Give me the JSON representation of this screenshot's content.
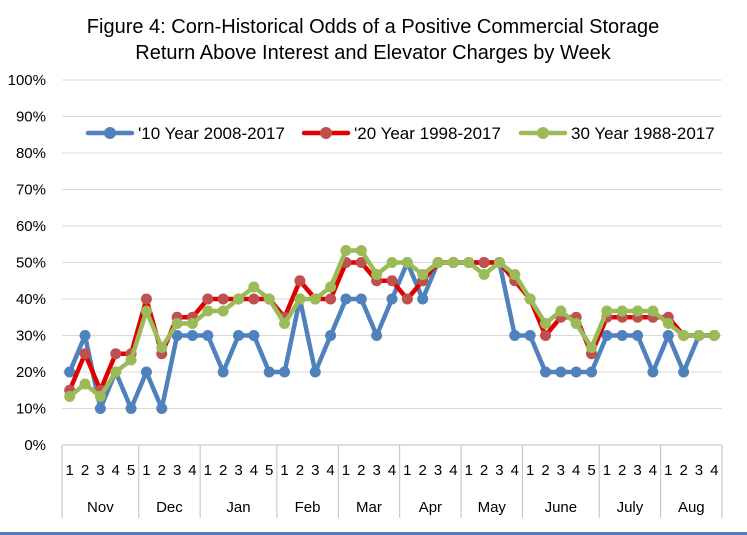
{
  "chart_data": {
    "type": "line",
    "title_lines": [
      "Figure 4: Corn-Historical Odds of a Positive Commercial Storage",
      "Return Above Interest and Elevator Charges by Week"
    ],
    "xlabel": "",
    "ylabel": "",
    "ylim": [
      0,
      100
    ],
    "y_ticks": [
      0,
      10,
      20,
      30,
      40,
      50,
      60,
      70,
      80,
      90,
      100
    ],
    "y_tick_labels": [
      "0%",
      "10%",
      "20%",
      "30%",
      "40%",
      "50%",
      "60%",
      "70%",
      "80%",
      "90%",
      "100%"
    ],
    "months": [
      {
        "label": "Nov",
        "weeks": [
          "1",
          "2",
          "3",
          "4",
          "5"
        ]
      },
      {
        "label": "Dec",
        "weeks": [
          "1",
          "2",
          "3",
          "4"
        ]
      },
      {
        "label": "Jan",
        "weeks": [
          "1",
          "2",
          "3",
          "4",
          "5"
        ]
      },
      {
        "label": "Feb",
        "weeks": [
          "1",
          "2",
          "3",
          "4"
        ]
      },
      {
        "label": "Mar",
        "weeks": [
          "1",
          "2",
          "3",
          "4"
        ]
      },
      {
        "label": "Apr",
        "weeks": [
          "1",
          "2",
          "3",
          "4"
        ]
      },
      {
        "label": "May",
        "weeks": [
          "1",
          "2",
          "3",
          "4"
        ]
      },
      {
        "label": "June",
        "weeks": [
          "1",
          "2",
          "3",
          "4",
          "5"
        ]
      },
      {
        "label": "July",
        "weeks": [
          "1",
          "2",
          "3",
          "4"
        ]
      },
      {
        "label": "Aug",
        "weeks": [
          "1",
          "2",
          "3",
          "4"
        ]
      }
    ],
    "series": [
      {
        "name": "'10 Year 2008-2017",
        "color": "#4f81bd",
        "values": [
          20,
          30,
          10,
          20,
          10,
          20,
          10,
          30,
          30,
          30,
          20,
          30,
          30,
          20,
          20,
          40,
          20,
          30,
          40,
          40,
          30,
          40,
          50,
          40,
          50,
          50,
          50,
          50,
          50,
          30,
          30,
          20,
          20,
          20,
          20,
          30,
          30,
          30,
          20,
          30,
          20,
          30,
          30
        ]
      },
      {
        "name": "'20 Year 1998-2017",
        "color": "#e00000",
        "marker_color": "#c0504d",
        "values": [
          15,
          25,
          15,
          25,
          25,
          40,
          25,
          35,
          35,
          40,
          40,
          40,
          40,
          40,
          35,
          45,
          40,
          40,
          50,
          50,
          45,
          45,
          40,
          45,
          50,
          50,
          50,
          50,
          50,
          45,
          40,
          30,
          35,
          35,
          25,
          35,
          35,
          35,
          35,
          35,
          30,
          30,
          30
        ]
      },
      {
        "name": "30 Year 1988-2017",
        "color": "#9bbb59",
        "values": [
          13.3,
          16.7,
          13.3,
          20,
          23.3,
          36.7,
          26.7,
          33.3,
          33.3,
          36.7,
          36.7,
          40,
          43.3,
          40,
          33.3,
          40,
          40,
          43.3,
          53.3,
          53.3,
          46.7,
          50,
          50,
          46.7,
          50,
          50,
          50,
          46.7,
          50,
          46.7,
          40,
          33.3,
          36.7,
          33.3,
          26.7,
          36.7,
          36.7,
          36.7,
          36.7,
          33.3,
          30,
          30,
          30
        ]
      }
    ],
    "legend_position": "top"
  },
  "theme": {
    "grid_color": "#d9d9d9",
    "axis_color": "#bfbfbf",
    "text_color": "#000000",
    "tick_text_color": "#000000",
    "bottom_rule_color": "#4f81bd"
  }
}
